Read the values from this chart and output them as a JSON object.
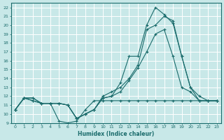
{
  "xlabel": "Humidex (Indice chaleur)",
  "bg_color": "#c8e8e8",
  "grid_color": "#ffffff",
  "line_color": "#1a6b6b",
  "xlim": [
    -0.5,
    23.5
  ],
  "ylim": [
    9,
    22.5
  ],
  "xticks": [
    0,
    1,
    2,
    3,
    4,
    5,
    6,
    7,
    8,
    9,
    10,
    11,
    12,
    13,
    14,
    15,
    16,
    17,
    18,
    19,
    20,
    21,
    22,
    23
  ],
  "yticks": [
    9,
    10,
    11,
    12,
    13,
    14,
    15,
    16,
    17,
    18,
    19,
    20,
    21,
    22
  ],
  "lines": [
    [
      10.5,
      11.8,
      11.5,
      11.2,
      11.2,
      9.2,
      9.0,
      9.2,
      10.5,
      11.5,
      11.5,
      11.5,
      11.5,
      11.5,
      11.5,
      11.5,
      11.5,
      11.5,
      11.5,
      11.5,
      11.5,
      11.5,
      11.5,
      11.5
    ],
    [
      10.5,
      11.8,
      11.8,
      11.2,
      11.2,
      11.2,
      11.0,
      9.5,
      10.0,
      10.5,
      11.8,
      12.0,
      12.5,
      13.8,
      15.2,
      17.0,
      19.0,
      19.5,
      16.5,
      13.0,
      12.5,
      11.5,
      11.5,
      11.5
    ],
    [
      10.5,
      11.8,
      11.8,
      11.2,
      11.2,
      11.2,
      11.0,
      9.5,
      10.0,
      10.5,
      11.8,
      12.0,
      13.5,
      16.5,
      16.5,
      20.0,
      22.0,
      21.2,
      20.2,
      16.5,
      13.0,
      12.0,
      11.5,
      11.5
    ],
    [
      10.5,
      11.8,
      11.5,
      11.2,
      11.2,
      11.2,
      11.0,
      9.5,
      10.0,
      10.5,
      12.0,
      12.5,
      13.0,
      14.0,
      15.5,
      19.5,
      20.0,
      21.0,
      20.5,
      16.5,
      13.0,
      11.5,
      11.5,
      11.5
    ]
  ]
}
